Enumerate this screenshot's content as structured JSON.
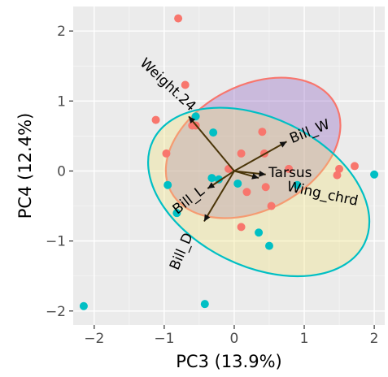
{
  "chart_data": {
    "type": "scatter",
    "xlabel": "PC3 (13.9%)",
    "ylabel": "PC4 (12.4%)",
    "xlim": [
      -2.3,
      2.15
    ],
    "ylim": [
      -2.2,
      2.35
    ],
    "x_ticks": [
      -2,
      -1,
      0,
      1,
      2
    ],
    "y_ticks": [
      -2,
      -1,
      0,
      1,
      2
    ],
    "x_tick_labels": [
      "−2",
      "−1",
      "0",
      "1",
      "2"
    ],
    "y_tick_labels": [
      "−2",
      "−1",
      "0",
      "1",
      "2"
    ],
    "grid": true,
    "legend": "none",
    "series": [
      {
        "color": "#F8766D",
        "ellipse_fill": "#8B5FBF",
        "points": [
          [
            -0.8,
            2.18
          ],
          [
            -0.7,
            1.23
          ],
          [
            -1.12,
            0.73
          ],
          [
            -0.97,
            0.25
          ],
          [
            -0.55,
            0.65
          ],
          [
            -0.6,
            0.65
          ],
          [
            0.1,
            0.25
          ],
          [
            0.4,
            0.56
          ],
          [
            0.43,
            0.25
          ],
          [
            -0.08,
            0.03
          ],
          [
            0.78,
            0.03
          ],
          [
            0.45,
            -0.23
          ],
          [
            0.53,
            -0.5
          ],
          [
            0.18,
            -0.3
          ],
          [
            0.1,
            -0.8
          ],
          [
            1.5,
            0.03
          ],
          [
            1.72,
            0.07
          ],
          [
            1.47,
            -0.06
          ]
        ]
      },
      {
        "color": "#00BFC4",
        "ellipse_fill": "#F0E27A",
        "points": [
          [
            -0.55,
            0.78
          ],
          [
            -0.3,
            0.55
          ],
          [
            -0.32,
            -0.1
          ],
          [
            -0.22,
            -0.12
          ],
          [
            -0.95,
            -0.2
          ],
          [
            -0.82,
            -0.6
          ],
          [
            0.05,
            -0.18
          ],
          [
            0.9,
            -0.2
          ],
          [
            0.35,
            -0.88
          ],
          [
            0.5,
            -1.07
          ],
          [
            -0.42,
            -1.9
          ],
          [
            -2.15,
            -1.93
          ],
          [
            2.0,
            -0.05
          ]
        ]
      }
    ],
    "ellipses": [
      {
        "cx": 0.27,
        "cy": 0.33,
        "rx": 1.33,
        "ry": 0.89,
        "rotation_deg": -28,
        "stroke": "#F8766D",
        "fill": "#8B5FBF"
      },
      {
        "cx": 0.35,
        "cy": -0.3,
        "rx": 1.68,
        "ry": 1.06,
        "rotation_deg": 26,
        "stroke": "#00BFC4",
        "fill": "#F0E27A"
      }
    ],
    "loadings": [
      {
        "name": "Weight.24",
        "x": -0.65,
        "y": 0.78,
        "label_x": -0.95,
        "label_y": 1.23,
        "label_angle": 43
      },
      {
        "name": "Bill_W",
        "x": 0.75,
        "y": 0.42,
        "label_x": 1.08,
        "label_y": 0.56,
        "label_angle": -22
      },
      {
        "name": "Tarsus",
        "x": 0.45,
        "y": -0.05,
        "label_x": 0.8,
        "label_y": -0.03,
        "label_angle": 0
      },
      {
        "name": "Wing_chrd",
        "x": 0.35,
        "y": -0.1,
        "label_x": 1.26,
        "label_y": -0.33,
        "label_angle": 12
      },
      {
        "name": "Bill_L",
        "x": -0.38,
        "y": -0.25,
        "label_x": -0.65,
        "label_y": -0.42,
        "label_angle": -38
      },
      {
        "name": "Bill_D",
        "x": -0.43,
        "y": -0.72,
        "label_x": -0.75,
        "label_y": -1.15,
        "label_angle": -67
      }
    ]
  }
}
